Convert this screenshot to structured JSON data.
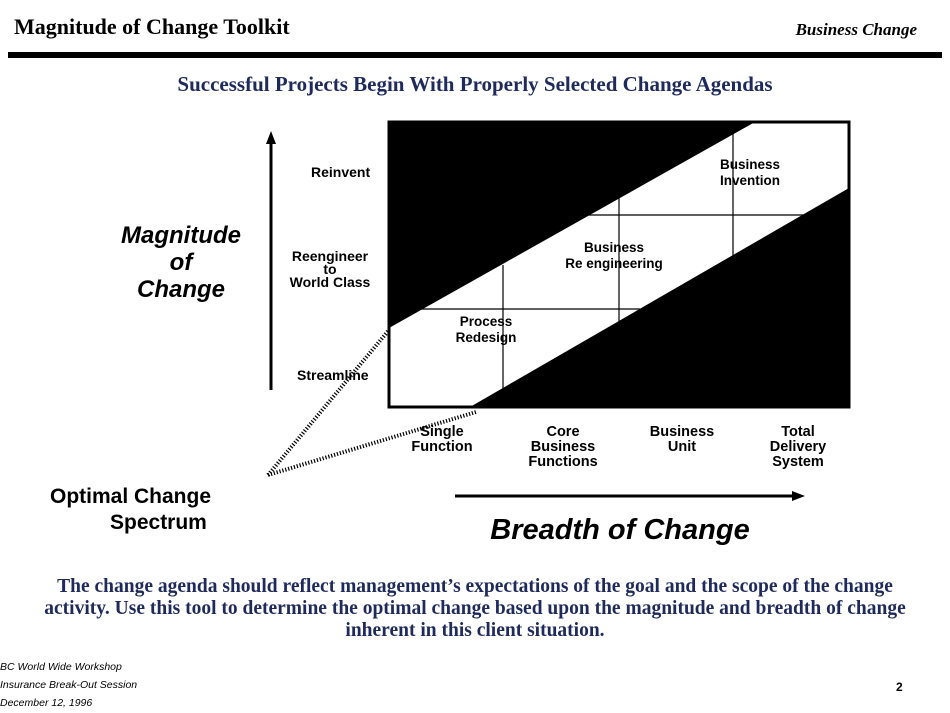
{
  "header": {
    "title": "Magnitude of Change Toolkit",
    "right_label": "Business Change"
  },
  "subtitle": "Successful Projects Begin With Properly Selected Change Agendas",
  "diagram": {
    "y_axis_label": [
      "Magnitude",
      "of",
      "Change"
    ],
    "x_axis_label": "Breadth of Change",
    "y_levels": [
      "Reinvent",
      "Reengineer",
      "to",
      "World Class",
      "Streamline"
    ],
    "x_levels": [
      [
        "Single",
        "Function"
      ],
      [
        "Core",
        "Business",
        "Functions"
      ],
      [
        "Business",
        "Unit"
      ],
      [
        "Total",
        "Delivery",
        "System"
      ]
    ],
    "zones": [
      [
        "Process",
        "Redesign"
      ],
      [
        "Business",
        "Re engineering"
      ],
      [
        "Business",
        "Invention"
      ]
    ],
    "callout": [
      "Optimal Change",
      "Spectrum"
    ],
    "colors": {
      "fill": "#000000",
      "navy_text": "#1f2a5c"
    }
  },
  "body_text": "The change agenda should reflect management’s expectations of the goal and the scope of the change activity.  Use this tool to determine the optimal change based upon the magnitude and breadth of change inherent in this client situation.",
  "footer": {
    "lines": [
      "BC World Wide Workshop",
      "Insurance Break-Out Session",
      "December 12, 1996"
    ],
    "page_number": "2"
  }
}
